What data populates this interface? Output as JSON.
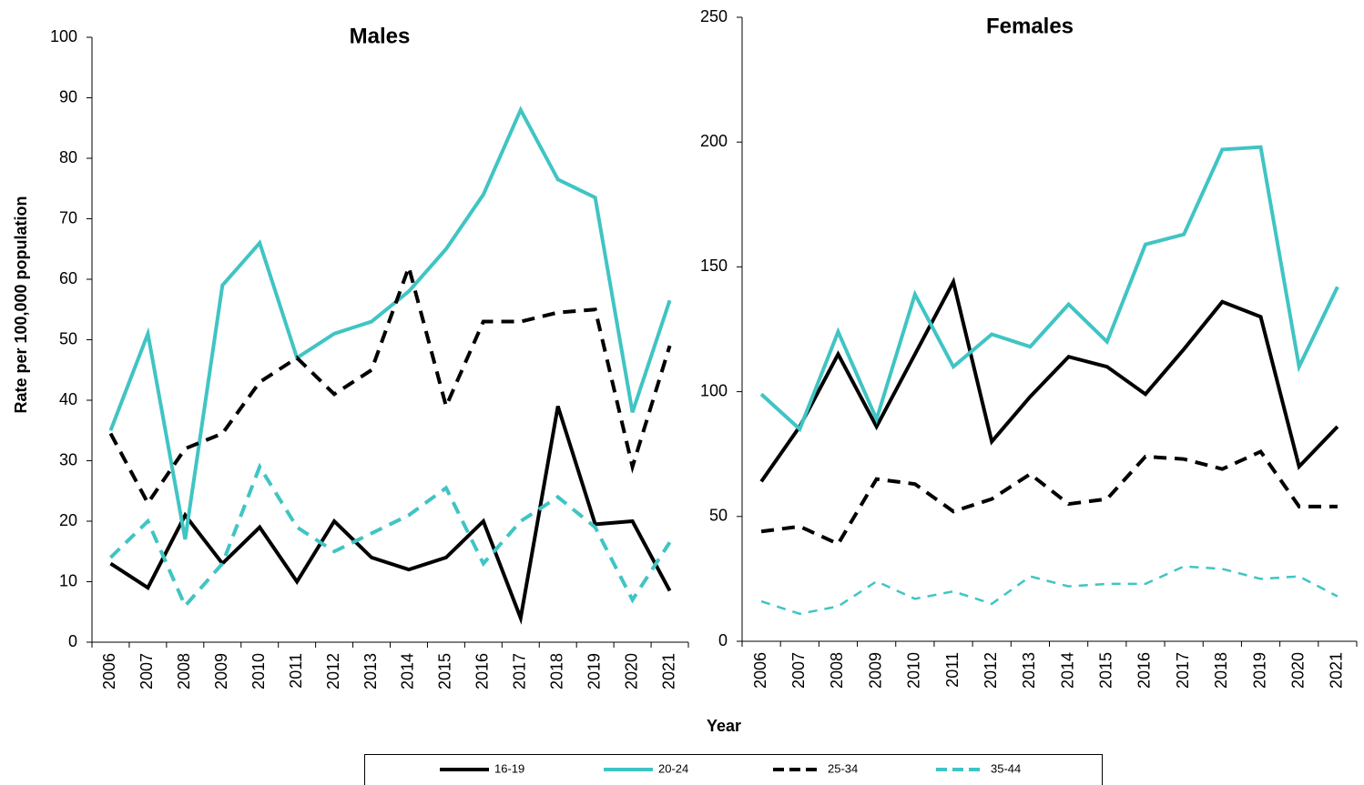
{
  "chart_data": [
    {
      "type": "line",
      "title": "Males",
      "ylabel": "Rate per 100,000 population",
      "categories": [
        "2006",
        "2007",
        "2008",
        "2009",
        "2010",
        "2011",
        "2012",
        "2013",
        "2014",
        "2015",
        "2016",
        "2017",
        "2018",
        "2019",
        "2020",
        "2021"
      ],
      "ylim": [
        0,
        100
      ],
      "yticks": [
        0,
        10,
        20,
        30,
        40,
        50,
        60,
        70,
        80,
        90,
        100
      ],
      "series": [
        {
          "name": "16-19",
          "color": "#000000",
          "dash": false,
          "values": [
            13,
            9,
            21,
            13,
            19,
            10,
            20,
            14,
            12,
            14,
            20,
            4,
            39,
            19.5,
            20,
            8.5
          ]
        },
        {
          "name": "20-24",
          "color": "#40c4c4",
          "dash": false,
          "values": [
            35,
            51,
            17,
            59,
            66,
            47,
            51,
            53,
            58,
            65,
            74,
            88,
            76.5,
            73.5,
            38,
            56.5
          ]
        },
        {
          "name": "25-34",
          "color": "#000000",
          "dash": true,
          "values": [
            34.5,
            23,
            32,
            34.5,
            43,
            47,
            41,
            45,
            62,
            39,
            53,
            53,
            54.5,
            55,
            29,
            49
          ]
        },
        {
          "name": "35-44",
          "color": "#40c4c4",
          "dash": true,
          "values": [
            14,
            20,
            6,
            13,
            29,
            19,
            15,
            18,
            21,
            25.5,
            13,
            20,
            24,
            19,
            7,
            16.5
          ]
        }
      ]
    },
    {
      "type": "line",
      "title": "Females",
      "xlabel": "Year",
      "categories": [
        "2006",
        "2007",
        "2008",
        "2009",
        "2010",
        "2011",
        "2012",
        "2013",
        "2014",
        "2015",
        "2016",
        "2017",
        "2018",
        "2019",
        "2020",
        "2021"
      ],
      "ylim": [
        0,
        250
      ],
      "yticks": [
        0,
        50,
        100,
        150,
        200,
        250
      ],
      "series": [
        {
          "color": "#000000",
          "dash": false,
          "values": [
            64,
            86,
            115,
            86,
            115,
            144,
            80,
            98,
            114,
            110,
            99,
            117,
            136,
            130,
            70,
            86
          ]
        },
        {
          "color": "#40c4c4",
          "dash": false,
          "values": [
            99,
            85,
            124,
            89,
            139,
            110,
            123,
            118,
            135,
            120,
            159,
            163,
            197,
            198,
            110,
            142
          ]
        },
        {
          "color": "#000000",
          "dash": true,
          "values": [
            44,
            46,
            39,
            65,
            63,
            52,
            57,
            67,
            55,
            57,
            74,
            73,
            69,
            76,
            54,
            54
          ]
        },
        {
          "color": "#40c4c4",
          "dash": true,
          "values": [
            16,
            11,
            14,
            24,
            17,
            20,
            15,
            26,
            22,
            23,
            23,
            30,
            29,
            25,
            26,
            18
          ]
        }
      ]
    }
  ]
}
